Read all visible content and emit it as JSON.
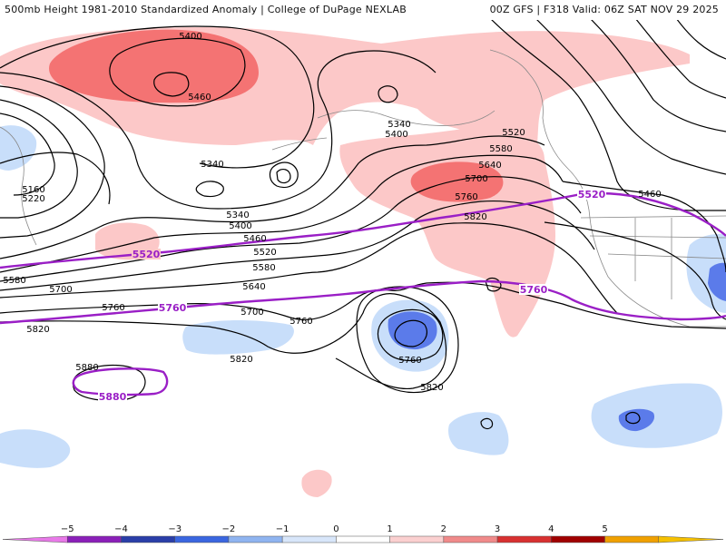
{
  "header": {
    "left_title": "500mb Height 1981-2010 Standardized Anomaly | College of DuPage NEXLAB",
    "right_title": "00Z GFS | F318 Valid: 06Z SAT NOV 29 2025"
  },
  "map": {
    "black_contour_labels": [
      "5400",
      "5460",
      "5340",
      "5400",
      "5340",
      "5160",
      "5220",
      "5340",
      "5400",
      "5460",
      "5520",
      "5580",
      "5640",
      "5700",
      "5760",
      "5820",
      "5520",
      "5580",
      "5640",
      "5700",
      "5760",
      "5820",
      "5460",
      "5580",
      "5700",
      "5760",
      "5700",
      "5760",
      "5820",
      "5760",
      "5820",
      "5880",
      "5820"
    ],
    "purple_contour_labels": [
      "5520",
      "5760",
      "5880",
      "5520",
      "5760"
    ],
    "colors": {
      "contour": "#000000",
      "purple_contour": "#9a1fc6",
      "pos1": "#fcc8c8",
      "pos2": "#f47373",
      "neg1": "#c8defa",
      "neg2": "#5b7bea"
    }
  },
  "colorbar": {
    "ticks": [
      "−5",
      "−4",
      "−3",
      "−2",
      "−1",
      "0",
      "1",
      "2",
      "3",
      "4",
      "5"
    ],
    "colors": [
      "#e879e8",
      "#8a1fb8",
      "#2a3ea8",
      "#3a66e0",
      "#8fb4f0",
      "#d8e6fa",
      "#ffffff",
      "#fbd0d0",
      "#f08a8a",
      "#d83030",
      "#a00000",
      "#f0a000",
      "#f5c000"
    ]
  }
}
